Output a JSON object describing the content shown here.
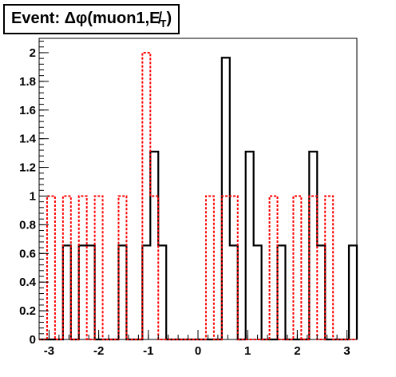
{
  "chart_data": {
    "type": "histogram",
    "title": "Event: Δφ(muon1,E̸T)",
    "title_main": "Event: Δφ(muon1,",
    "title_met": "E̸",
    "title_sub": "T",
    "title_close": ")",
    "xlabel": "",
    "ylabel": "",
    "xlim": [
      -3.2,
      3.2
    ],
    "ylim": [
      0,
      2.1
    ],
    "grid": false,
    "x_ticks": [
      -3,
      -2,
      -1,
      0,
      1,
      2,
      3
    ],
    "x_tick_labels": [
      "-3",
      "-2",
      "-1",
      "0",
      "1",
      "2",
      "3"
    ],
    "y_ticks": [
      0,
      0.2,
      0.4,
      0.6,
      0.8,
      1,
      1.2,
      1.4,
      1.6,
      1.8,
      2
    ],
    "y_tick_labels": [
      "0",
      "0.2",
      "0.4",
      "0.6",
      "0.8",
      "1",
      "1.2",
      "1.4",
      "1.6",
      "1.8",
      "2"
    ],
    "bin_edges": [
      -3.2,
      -3.04,
      -2.88,
      -2.72,
      -2.56,
      -2.4,
      -2.24,
      -2.08,
      -1.92,
      -1.76,
      -1.6,
      -1.44,
      -1.28,
      -1.12,
      -0.96,
      -0.8,
      -0.64,
      -0.48,
      -0.32,
      -0.16,
      0,
      0.16,
      0.32,
      0.48,
      0.64,
      0.8,
      0.96,
      1.12,
      1.28,
      1.44,
      1.6,
      1.76,
      1.92,
      2.08,
      2.24,
      2.4,
      2.56,
      2.72,
      2.88,
      3.04,
      3.2
    ],
    "series": [
      {
        "color": "#000000",
        "style": "solid",
        "values": [
          0,
          0,
          0,
          0.655,
          0,
          0.655,
          0.655,
          0,
          0,
          0,
          0.655,
          0,
          0,
          0.655,
          1.31,
          0.655,
          0,
          0,
          0,
          0,
          0,
          0,
          0,
          1.965,
          0.655,
          0,
          1.31,
          0.655,
          0,
          0,
          0.655,
          0,
          0,
          0,
          1.31,
          0.655,
          0,
          0,
          0,
          0.655
        ]
      },
      {
        "color": "#ff0000",
        "style": "dotted",
        "values": [
          0,
          1,
          0,
          1,
          0,
          1,
          0,
          1,
          0,
          0,
          1,
          0,
          0,
          2,
          1,
          0,
          0,
          0,
          0,
          0,
          0,
          1,
          0,
          1,
          1,
          0,
          0,
          0,
          0,
          1,
          0,
          0,
          1,
          0,
          1,
          0,
          1,
          0,
          0,
          0
        ]
      }
    ]
  }
}
